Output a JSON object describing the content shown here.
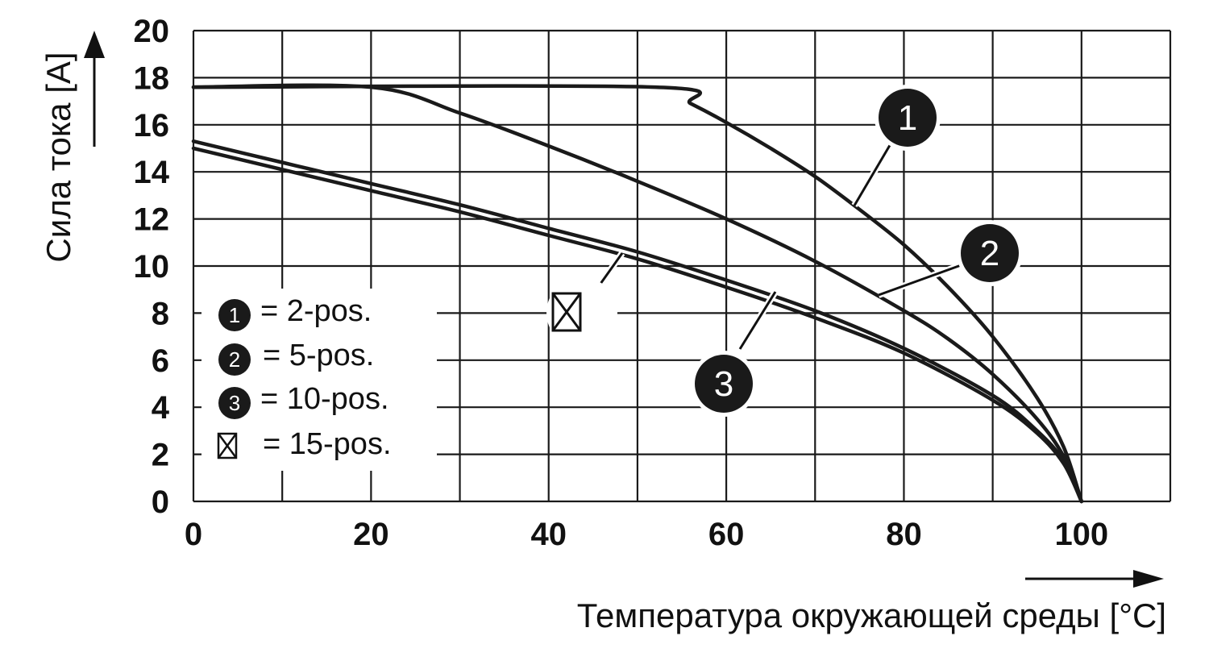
{
  "chart_data": {
    "type": "line",
    "title": "",
    "xlabel": "Температура окружающей среды [°C]",
    "ylabel": "Сила тока [A]",
    "xlim": [
      0,
      110
    ],
    "ylim": [
      0,
      20
    ],
    "x_ticks": [
      "0",
      "20",
      "40",
      "60",
      "80",
      "100"
    ],
    "y_ticks": [
      "0",
      "2",
      "4",
      "6",
      "8",
      "10",
      "12",
      "14",
      "16",
      "18",
      "20"
    ],
    "grid": true,
    "colors": {
      "line": "#1a1a1a",
      "grid": "#1a1a1a",
      "badge": "#1a1a1a"
    },
    "series": [
      {
        "badge": "1",
        "x": [
          0,
          52,
          56,
          60,
          65,
          70,
          75,
          80,
          85,
          90,
          95,
          98,
          100
        ],
        "y": [
          17.6,
          17.6,
          16.9,
          16.1,
          15.0,
          13.8,
          12.4,
          10.9,
          9.1,
          7.0,
          4.4,
          2.3,
          0
        ]
      },
      {
        "badge": "2",
        "x": [
          0,
          20,
          30,
          40,
          50,
          60,
          70,
          80,
          85,
          90,
          95,
          98,
          100
        ],
        "y": [
          17.6,
          17.6,
          16.5,
          15.1,
          13.6,
          12.0,
          10.2,
          8.1,
          6.9,
          5.4,
          3.5,
          1.9,
          0
        ]
      },
      {
        "badge": "3",
        "x": [
          0,
          10,
          20,
          30,
          40,
          50,
          60,
          70,
          80,
          90,
          95,
          98,
          100
        ],
        "y": [
          15.3,
          14.4,
          13.5,
          12.6,
          11.6,
          10.6,
          9.4,
          8.1,
          6.5,
          4.5,
          3.0,
          1.7,
          0
        ]
      },
      {
        "badge": "⊠",
        "x": [
          0,
          10,
          20,
          30,
          40,
          50,
          60,
          70,
          80,
          90,
          95,
          98,
          100
        ],
        "y": [
          15.0,
          14.1,
          13.2,
          12.3,
          11.3,
          10.3,
          9.1,
          7.8,
          6.3,
          4.3,
          2.9,
          1.6,
          0
        ]
      }
    ],
    "legend": {
      "position": "bottom-left",
      "entries": [
        {
          "badge": "1",
          "label": "= 2-pos."
        },
        {
          "badge": "2",
          "label": "= 5-pos."
        },
        {
          "badge": "3",
          "label": "= 10-pos."
        },
        {
          "badge": "⊠",
          "label": "= 15-pos."
        }
      ]
    }
  }
}
